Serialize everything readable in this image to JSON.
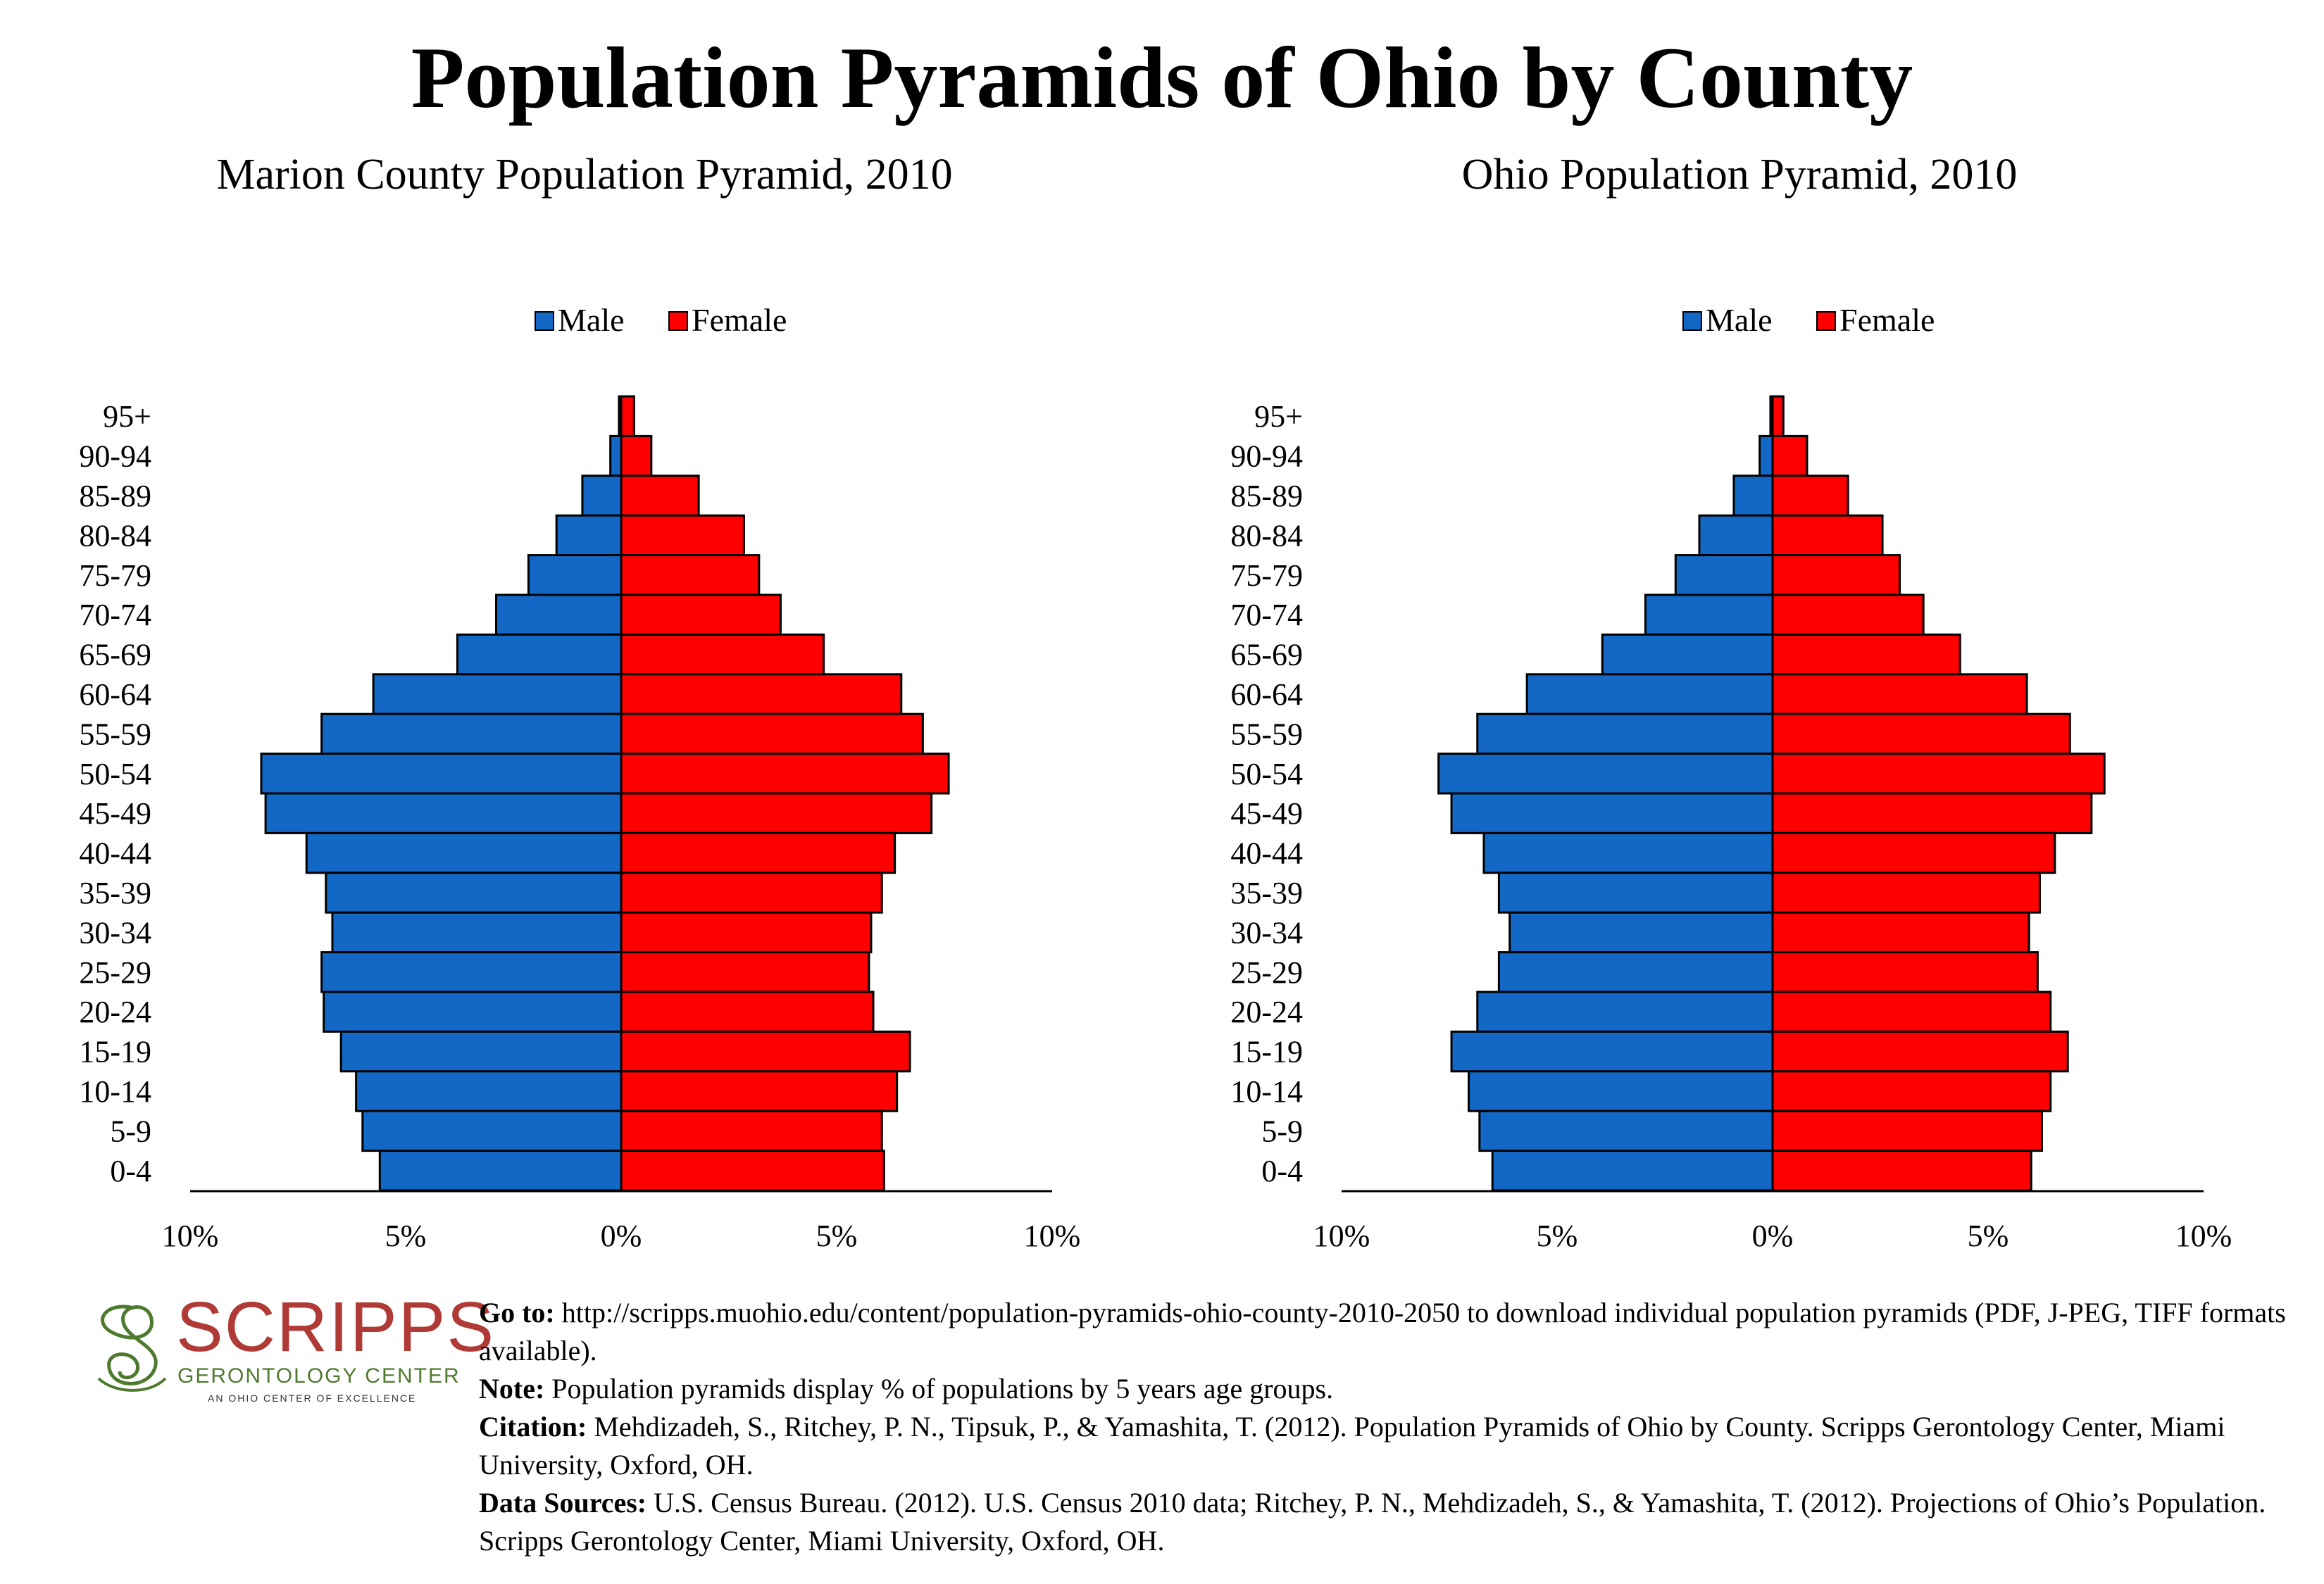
{
  "title": "Population Pyramids of Ohio by County",
  "colors": {
    "male": "#1268c4",
    "female": "#ff0000",
    "logo_red": "#b03a35",
    "logo_green": "#4e7a2e"
  },
  "chart_data": [
    {
      "type": "bar",
      "title": "Marion County Population Pyramid, 2010",
      "legend": [
        "Male",
        "Female"
      ],
      "legend_position": "top-center",
      "categories": [
        "95+",
        "90-94",
        "85-89",
        "80-84",
        "75-79",
        "70-74",
        "65-69",
        "60-64",
        "55-59",
        "50-54",
        "45-49",
        "40-44",
        "35-39",
        "30-34",
        "25-29",
        "20-24",
        "15-19",
        "10-14",
        "5-9",
        "0-4"
      ],
      "series": [
        {
          "name": "Male",
          "values": [
            0.05,
            0.25,
            0.9,
            1.5,
            2.15,
            2.9,
            3.8,
            5.75,
            6.95,
            8.35,
            8.25,
            7.3,
            6.85,
            6.7,
            6.95,
            6.9,
            6.5,
            6.15,
            6.0,
            5.6
          ]
        },
        {
          "name": "Female",
          "values": [
            0.3,
            0.7,
            1.8,
            2.85,
            3.2,
            3.7,
            4.7,
            6.5,
            7.0,
            7.6,
            7.2,
            6.35,
            6.05,
            5.8,
            5.75,
            5.85,
            6.7,
            6.4,
            6.05,
            6.1
          ]
        }
      ],
      "xlim": [
        -10,
        10
      ],
      "xticks": [
        "10%",
        "5%",
        "0%",
        "5%",
        "10%"
      ]
    },
    {
      "type": "bar",
      "title": "Ohio Population Pyramid, 2010",
      "legend": [
        "Male",
        "Female"
      ],
      "legend_position": "top-center",
      "categories": [
        "95+",
        "90-94",
        "85-89",
        "80-84",
        "75-79",
        "70-74",
        "65-69",
        "60-64",
        "55-59",
        "50-54",
        "45-49",
        "40-44",
        "35-39",
        "30-34",
        "25-29",
        "20-24",
        "15-19",
        "10-14",
        "5-9",
        "0-4"
      ],
      "series": [
        {
          "name": "Male",
          "values": [
            0.05,
            0.3,
            0.9,
            1.7,
            2.25,
            2.95,
            3.95,
            5.7,
            6.85,
            7.75,
            7.45,
            6.7,
            6.35,
            6.1,
            6.35,
            6.85,
            7.45,
            7.05,
            6.8,
            6.5
          ]
        },
        {
          "name": "Female",
          "values": [
            0.25,
            0.8,
            1.75,
            2.55,
            2.95,
            3.5,
            4.35,
            5.9,
            6.9,
            7.7,
            7.4,
            6.55,
            6.2,
            5.95,
            6.15,
            6.45,
            6.85,
            6.45,
            6.25,
            6.0
          ]
        }
      ],
      "xlim": [
        -10,
        10
      ],
      "xticks": [
        "10%",
        "5%",
        "0%",
        "5%",
        "10%"
      ]
    }
  ],
  "logo": {
    "word": "SCRIPPS",
    "sub": "GERONTOLOGY CENTER",
    "tag": "AN OHIO CENTER OF EXCELLENCE"
  },
  "footer": {
    "goto_label": "Go to:",
    "goto_text": "http://scripps.muohio.edu/content/population-pyramids-ohio-county-2010-2050 to download individual population pyramids (PDF, J-PEG, TIFF formats available).",
    "note_label": "Note:",
    "note_text": "Population pyramids display % of populations by 5 years age groups.",
    "citation_label": "Citation:",
    "citation_text": "Mehdizadeh, S., Ritchey, P. N., Tipsuk, P., & Yamashita, T. (2012). Population Pyramids of Ohio by County. Scripps Gerontology Center, Miami University, Oxford, OH.",
    "sources_label": "Data Sources:",
    "sources_text": "U.S. Census Bureau. (2012). U.S. Census 2010 data; Ritchey, P. N., Mehdizadeh, S., & Yamashita, T. (2012). Projections of Ohio’s Population. Scripps Gerontology Center, Miami University, Oxford, OH."
  }
}
